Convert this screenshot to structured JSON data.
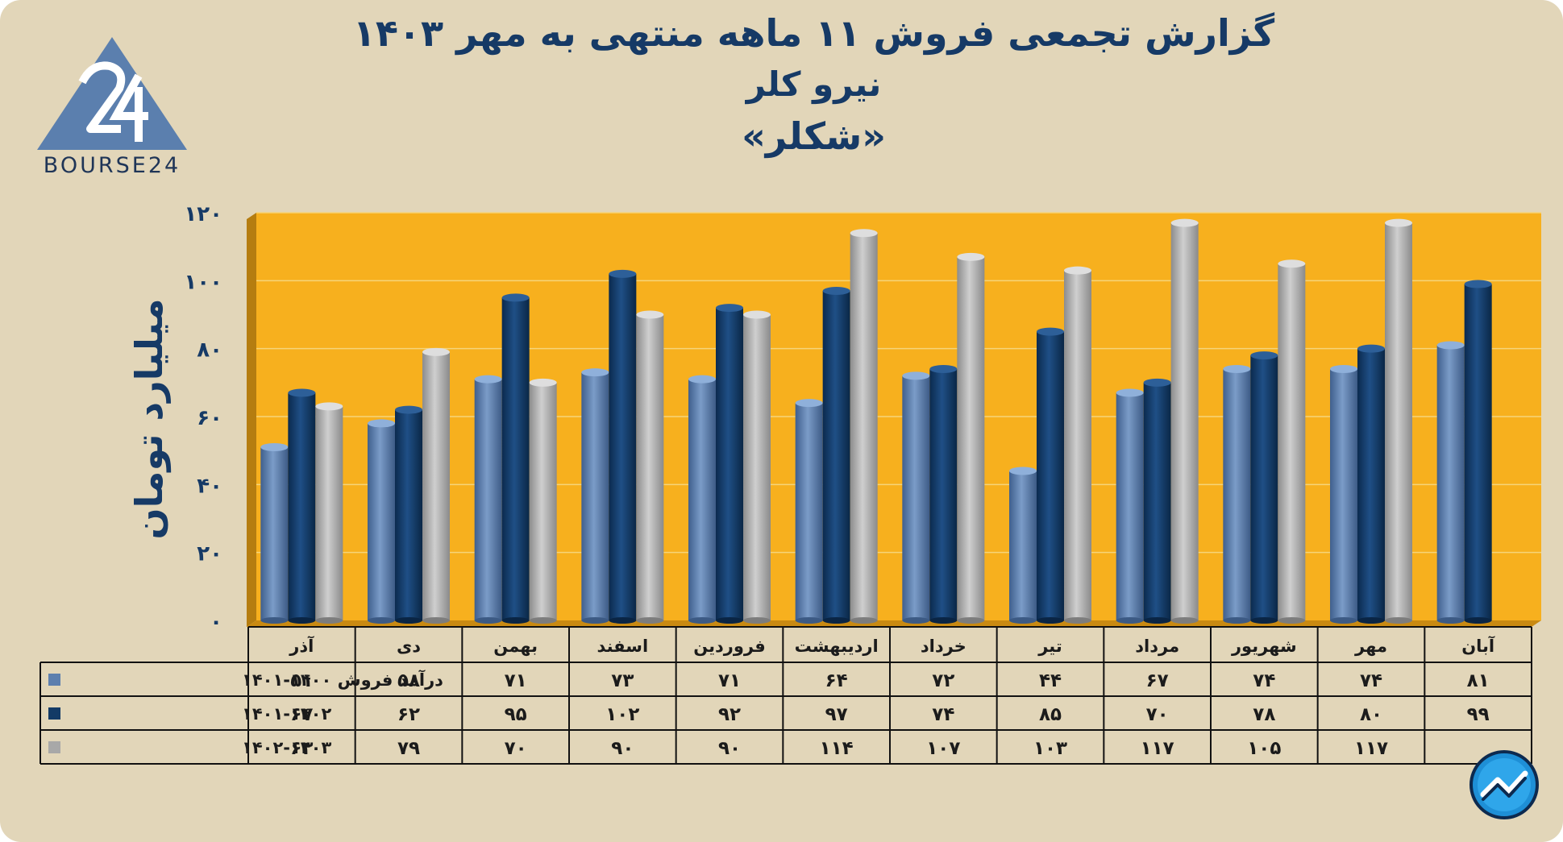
{
  "title": {
    "line1": "گزارش تجمعی فروش ۱۱ ماهه منتهی به مهر ۱۴۰۳",
    "line2": "نیرو کلر",
    "line3": "«شکلر»"
  },
  "logo": {
    "text": "BOURSE24"
  },
  "colors": {
    "plot_bg": "#f7b01e",
    "series1": "#5d7fae",
    "series2": "#133a66",
    "series3": "#a8a8a8",
    "text": "#163a66"
  },
  "chart_data": {
    "type": "bar",
    "ylabel": "میلیارد تومان",
    "ylim": [
      0,
      120
    ],
    "yticks": [
      0,
      20,
      40,
      60,
      80,
      100,
      120
    ],
    "ytick_labels": [
      "۰",
      "۲۰",
      "۴۰",
      "۶۰",
      "۸۰",
      "۱۰۰",
      "۱۲۰"
    ],
    "grid": true,
    "categories": [
      "آذر",
      "دی",
      "بهمن",
      "اسفند",
      "فروردین",
      "اردیبهشت",
      "خرداد",
      "تیر",
      "مرداد",
      "شهریور",
      "مهر",
      "آبان"
    ],
    "series": [
      {
        "name": "درآمد فروش ۱۴۰۰-۱۴۰۱",
        "values": [
          51,
          58,
          71,
          73,
          71,
          64,
          72,
          44,
          67,
          74,
          74,
          81
        ],
        "labels": [
          "۵۱",
          "۵۸",
          "۷۱",
          "۷۳",
          "۷۱",
          "۶۴",
          "۷۲",
          "۴۴",
          "۶۷",
          "۷۴",
          "۷۴",
          "۸۱"
        ]
      },
      {
        "name": "۱۴۰۱-۱۴۰۲",
        "values": [
          67,
          62,
          95,
          102,
          92,
          97,
          74,
          85,
          70,
          78,
          80,
          99
        ],
        "labels": [
          "۶۷",
          "۶۲",
          "۹۵",
          "۱۰۲",
          "۹۲",
          "۹۷",
          "۷۴",
          "۸۵",
          "۷۰",
          "۷۸",
          "۸۰",
          "۹۹"
        ]
      },
      {
        "name": "۱۴۰۲-۱۴۰۳",
        "values": [
          63,
          79,
          70,
          90,
          90,
          114,
          107,
          103,
          117,
          105,
          117,
          null
        ],
        "labels": [
          "۶۳",
          "۷۹",
          "۷۰",
          "۹۰",
          "۹۰",
          "۱۱۴",
          "۱۰۷",
          "۱۰۳",
          "۱۱۷",
          "۱۰۵",
          "۱۱۷",
          ""
        ]
      }
    ]
  }
}
